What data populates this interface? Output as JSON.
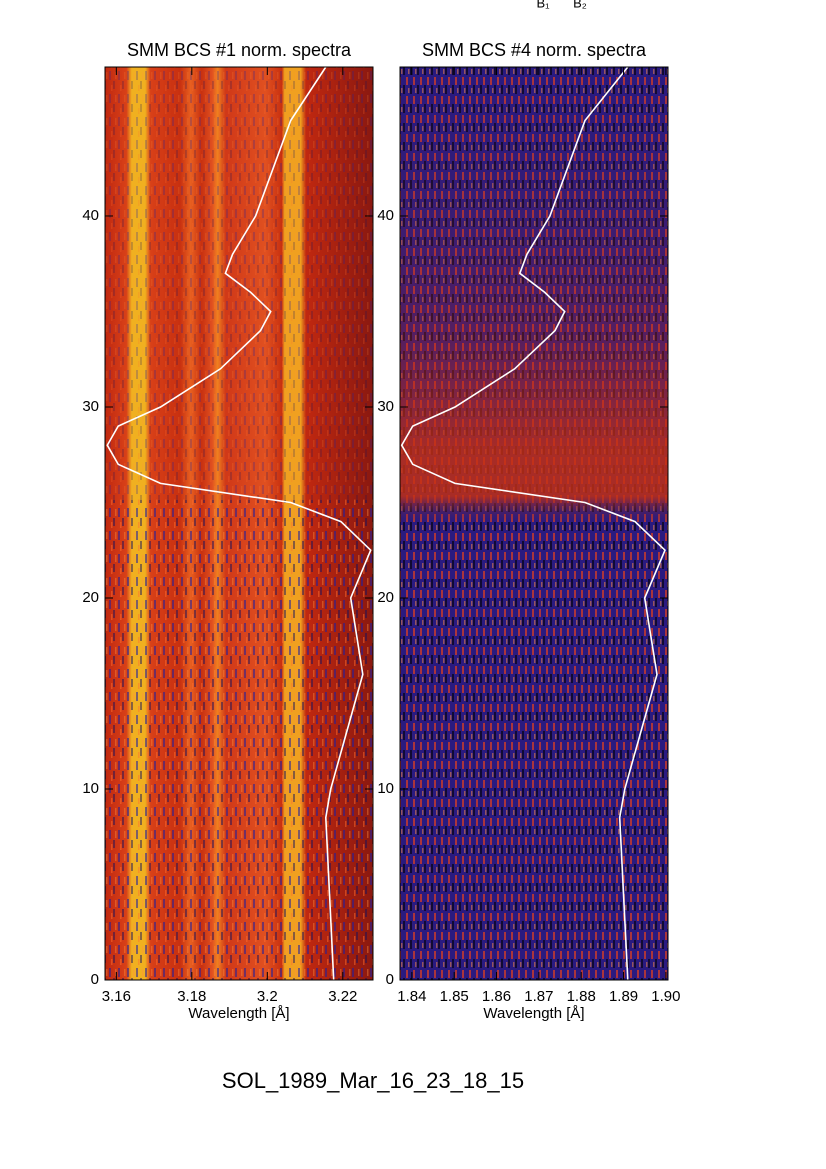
{
  "annotations": [
    "B₁",
    "B₂"
  ],
  "caption": "SOL_1989_Mar_16_23_18_15",
  "chart_data": [
    {
      "type": "line",
      "title": "SMM BCS #1 norm. spectra",
      "xlabel": "Wavelength [Å]",
      "xlim": [
        3.157,
        3.228
      ],
      "xticks": [
        3.16,
        3.18,
        3.2,
        3.22
      ],
      "ylim": [
        0,
        47.8
      ],
      "yticks": [
        0,
        10,
        20,
        30,
        40
      ],
      "series": [
        {
          "color": "#ffffff",
          "x": [
            3.2176,
            3.2155,
            3.2168,
            3.2253,
            3.2221,
            3.2274,
            3.2195,
            3.2062,
            3.1717,
            3.1605,
            3.1576,
            3.1605,
            3.1717,
            3.1876,
            3.1982,
            3.2009,
            3.1956,
            3.1889,
            3.1908,
            3.1969,
            3.2062,
            3.2155
          ],
          "values": [
            0,
            8.5,
            10,
            16,
            20,
            22.5,
            24,
            25,
            26,
            27,
            28,
            29,
            30,
            32,
            34,
            35,
            36,
            37,
            38,
            40,
            45,
            47.8
          ]
        }
      ]
    },
    {
      "type": "line",
      "title": "SMM BCS #4 norm. spectra",
      "xlabel": "Wavelength [Å]",
      "xlim": [
        1.8372,
        1.9005
      ],
      "xticks": [
        1.84,
        1.85,
        1.86,
        1.87,
        1.88,
        1.89,
        {
          "value": 1.9,
          "label": "1.90"
        }
      ],
      "ylim": [
        0,
        47.8
      ],
      "yticks": [
        0,
        10,
        20,
        30,
        40
      ],
      "series": [
        {
          "color": "#ffffff",
          "x": [
            1.891,
            1.8891,
            1.8903,
            1.8979,
            1.895,
            1.8998,
            1.8927,
            1.8809,
            1.8502,
            1.8402,
            1.8376,
            1.8402,
            1.8502,
            1.8643,
            1.8738,
            1.8761,
            1.8714,
            1.8655,
            1.8672,
            1.8726,
            1.8809,
            1.891
          ],
          "values": [
            0,
            8.5,
            10,
            16,
            20,
            22.5,
            24,
            25,
            26,
            27,
            28,
            29,
            30,
            32,
            34,
            35,
            36,
            37,
            38,
            40,
            45,
            47.8
          ]
        }
      ]
    }
  ]
}
